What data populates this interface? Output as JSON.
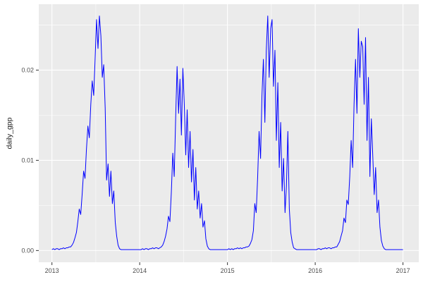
{
  "chart_data": {
    "type": "line",
    "title": "",
    "xlabel": "",
    "ylabel": "daily_gpp",
    "legend": "none",
    "grid": "on",
    "panel_bg": "#EBEBEB",
    "grid_color": "#FFFFFF",
    "line_color": "#0000FF",
    "tick_color": "#333333",
    "label_color": "#4D4D4D",
    "xlim": [
      2012.85,
      2017.18
    ],
    "ylim": [
      -0.0013,
      0.0273
    ],
    "x_ticks": [
      2013,
      2014,
      2015,
      2016,
      2017
    ],
    "x_tick_labels": [
      "2013",
      "2014",
      "2015",
      "2016",
      "2017"
    ],
    "x_minor_ticks": [
      2013.5,
      2014.5,
      2015.5,
      2016.5
    ],
    "y_ticks": [
      0,
      0.01,
      0.02
    ],
    "y_tick_labels": [
      "0.00",
      "0.01",
      "0.02"
    ],
    "y_minor_ticks": [
      0.005,
      0.015,
      0.025
    ],
    "series": [
      {
        "name": "daily_gpp",
        "sampling": "values are evenly spaced within each year (61 samples/year, ~6-day step)",
        "x_end": 2017.0,
        "end_value": 0.0001,
        "years": [
          {
            "start": 2013,
            "values": [
              0.0001,
              0.0002,
              0.0001,
              0.0002,
              0.0002,
              0.0001,
              0.0002,
              0.0002,
              0.0003,
              0.0002,
              0.0003,
              0.0003,
              0.0004,
              0.0004,
              0.0006,
              0.0009,
              0.0014,
              0.002,
              0.0032,
              0.0046,
              0.004,
              0.0062,
              0.0088,
              0.008,
              0.0112,
              0.0138,
              0.0125,
              0.0162,
              0.0188,
              0.0172,
              0.0212,
              0.0256,
              0.0224,
              0.026,
              0.0238,
              0.0192,
              0.0206,
              0.0158,
              0.0078,
              0.0096,
              0.006,
              0.0088,
              0.0052,
              0.0066,
              0.0031,
              0.0016,
              0.0006,
              0.0002,
              0.0001,
              0.0001,
              0.0001,
              0.0001,
              0.0001,
              0.0001,
              0.0001,
              0.0001,
              0.0001,
              0.0001,
              0.0001,
              0.0001,
              0.0001
            ]
          },
          {
            "start": 2014,
            "values": [
              0.0001,
              0.0001,
              0.0002,
              0.0001,
              0.0002,
              0.0002,
              0.0001,
              0.0002,
              0.0002,
              0.0003,
              0.0002,
              0.0003,
              0.0003,
              0.0002,
              0.0003,
              0.0004,
              0.0006,
              0.001,
              0.0016,
              0.0024,
              0.0038,
              0.0032,
              0.0064,
              0.0108,
              0.0082,
              0.0148,
              0.0204,
              0.0152,
              0.019,
              0.0128,
              0.0202,
              0.0162,
              0.0106,
              0.0156,
              0.0092,
              0.0132,
              0.0076,
              0.0112,
              0.0056,
              0.0092,
              0.0046,
              0.0066,
              0.0036,
              0.0052,
              0.0026,
              0.0033,
              0.0013,
              0.0005,
              0.0002,
              0.0001,
              0.0001,
              0.0001,
              0.0001,
              0.0001,
              0.0001,
              0.0001,
              0.0001,
              0.0001,
              0.0001,
              0.0001,
              0.0001
            ]
          },
          {
            "start": 2015,
            "values": [
              0.0001,
              0.0002,
              0.0001,
              0.0002,
              0.0001,
              0.0002,
              0.0002,
              0.0003,
              0.0002,
              0.0003,
              0.0002,
              0.0003,
              0.0003,
              0.0004,
              0.0004,
              0.0005,
              0.0008,
              0.0012,
              0.0022,
              0.0052,
              0.0042,
              0.0082,
              0.0132,
              0.0102,
              0.0172,
              0.0212,
              0.0142,
              0.0222,
              0.026,
              0.0192,
              0.0246,
              0.0256,
              0.0182,
              0.0222,
              0.0122,
              0.0186,
              0.0092,
              0.0142,
              0.0066,
              0.0102,
              0.0042,
              0.0072,
              0.0132,
              0.0046,
              0.002,
              0.0009,
              0.0003,
              0.0002,
              0.0001,
              0.0001,
              0.0001,
              0.0001,
              0.0001,
              0.0001,
              0.0001,
              0.0001,
              0.0001,
              0.0001,
              0.0001,
              0.0001,
              0.0001
            ]
          },
          {
            "start": 2016,
            "values": [
              0.0001,
              0.0001,
              0.0002,
              0.0002,
              0.0001,
              0.0002,
              0.0002,
              0.0003,
              0.0002,
              0.0003,
              0.0003,
              0.0002,
              0.0003,
              0.0003,
              0.0004,
              0.0004,
              0.0007,
              0.001,
              0.0016,
              0.0022,
              0.0036,
              0.0031,
              0.0056,
              0.0051,
              0.0082,
              0.0122,
              0.0092,
              0.0162,
              0.0212,
              0.0152,
              0.0246,
              0.0192,
              0.0232,
              0.0226,
              0.0162,
              0.0236,
              0.0122,
              0.0192,
              0.0082,
              0.0146,
              0.0106,
              0.0062,
              0.0092,
              0.0042,
              0.0056,
              0.0026,
              0.0011,
              0.0005,
              0.0002,
              0.0001,
              0.0001,
              0.0001,
              0.0001,
              0.0001,
              0.0001,
              0.0001,
              0.0001,
              0.0001,
              0.0001,
              0.0001,
              0.0001
            ]
          }
        ]
      }
    ]
  }
}
